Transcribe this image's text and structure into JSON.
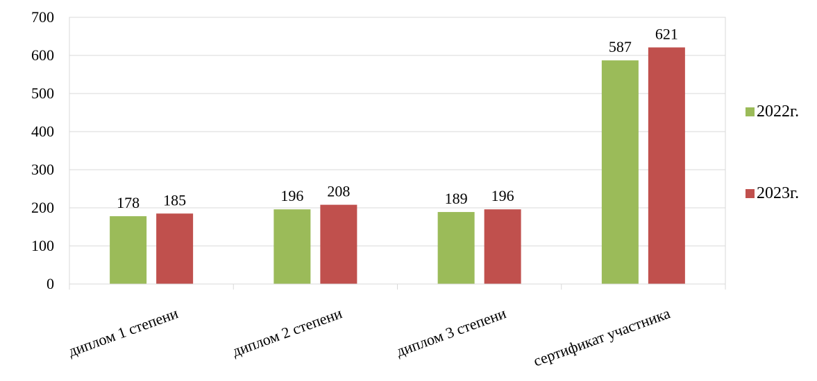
{
  "chart_data": {
    "type": "bar",
    "categories": [
      "диплом 1 степени",
      "диплом 2 степени",
      "диплом 3 степени",
      "сертификат участника"
    ],
    "series": [
      {
        "name": "2022г.",
        "values": [
          178,
          196,
          189,
          587
        ],
        "color": "#9BBB59"
      },
      {
        "name": "2023г.",
        "values": [
          185,
          208,
          196,
          621
        ],
        "color": "#C0504D"
      }
    ],
    "yticks": [
      0,
      100,
      200,
      300,
      400,
      500,
      600,
      700
    ],
    "ylim": [
      0,
      700
    ],
    "grid": true,
    "legend": "right",
    "gridline_color": "#D9D9D9",
    "axis_color": "#000000"
  }
}
